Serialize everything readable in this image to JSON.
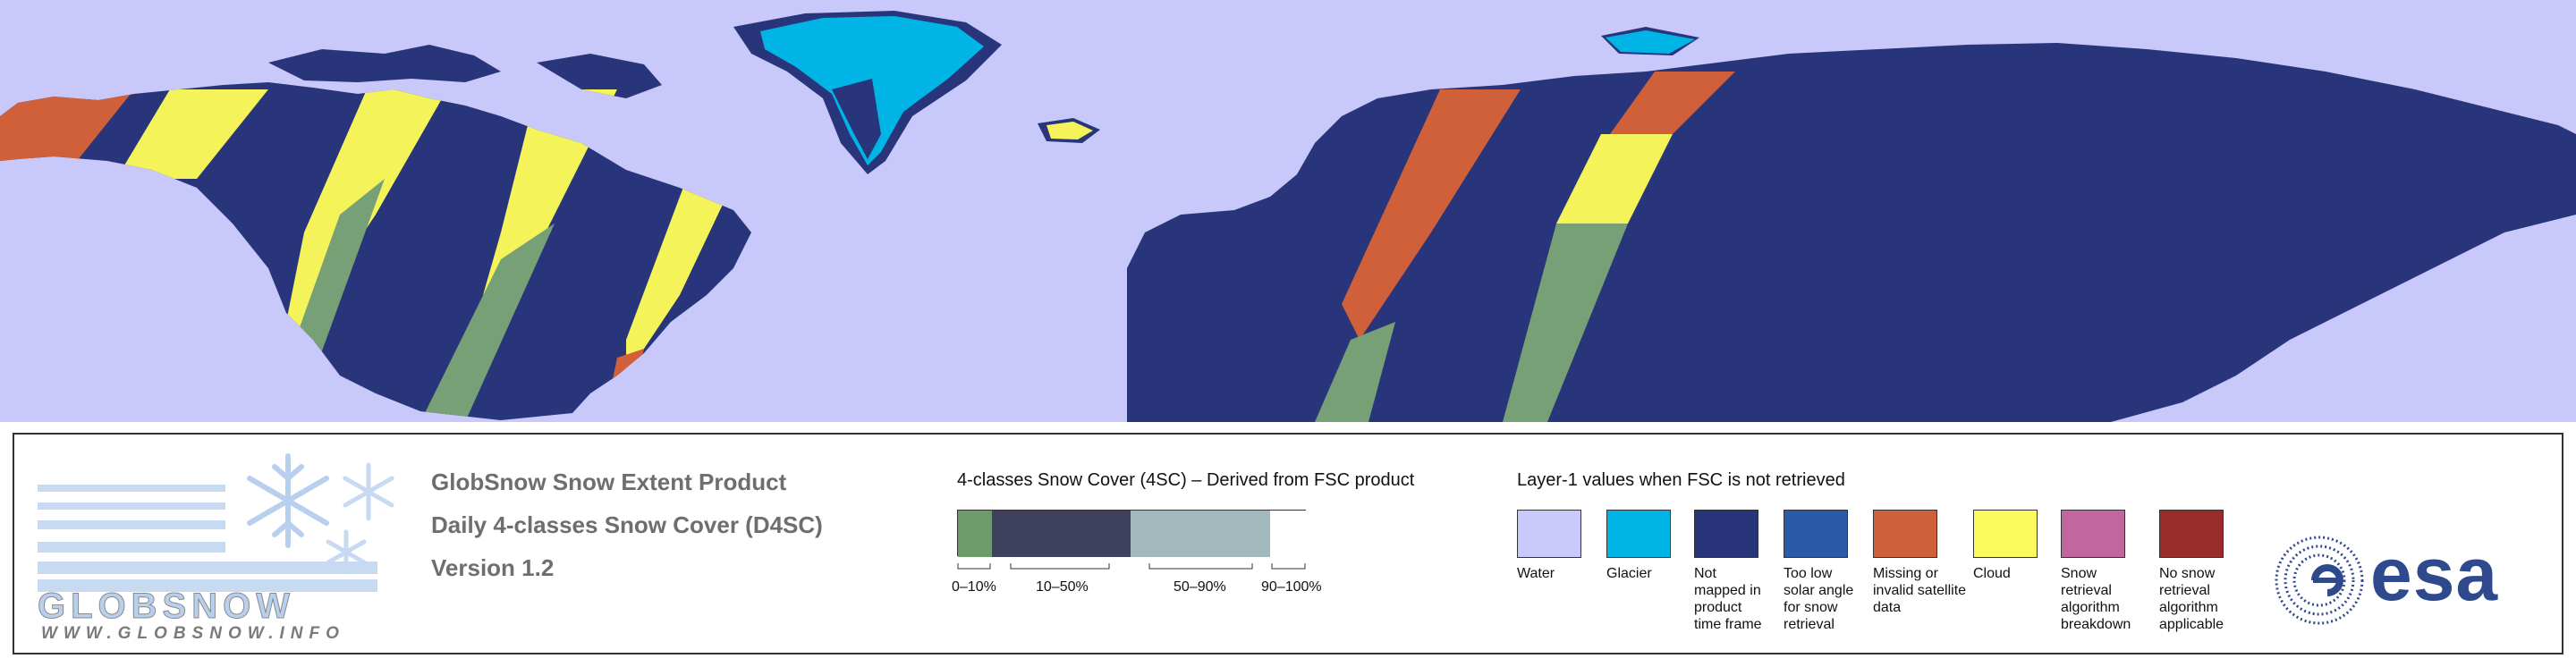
{
  "map": {
    "colors": {
      "ocean": "#c8c8fa",
      "land_snowfree": "#29357a",
      "glacier": "#00b4e6",
      "missing": "#d0603a",
      "cloud": "#f4f45a",
      "snow_low": "#78a076"
    }
  },
  "logo": {
    "wordmark": "GLOBSNOW",
    "url": "WWW.GLOBSNOW.INFO"
  },
  "product": {
    "line1": "GlobSnow Snow Extent Product",
    "line2": "Daily 4-classes Snow Cover (D4SC)",
    "line3": "Version 1.2"
  },
  "snow_cover_legend": {
    "title": "4-classes Snow Cover (4SC) – Derived from FSC product",
    "classes": [
      {
        "range": "0–10%",
        "color": "#6e9a6c"
      },
      {
        "range": "10–50%",
        "color": "#3f405e"
      },
      {
        "range": "50–90%",
        "color": "#a1b9bd"
      },
      {
        "range": "90–100%",
        "color": "#ffffff"
      }
    ]
  },
  "layer1_legend": {
    "title": "Layer-1 values when FSC is not retrieved",
    "items": [
      {
        "label": "Water",
        "color": "#c8c8fa"
      },
      {
        "label": "Glacier",
        "color": "#00b4e6"
      },
      {
        "label": "Not mapped in product time frame",
        "color": "#29357a"
      },
      {
        "label": "Too low solar angle for snow retrieval",
        "color": "#2b5aa8"
      },
      {
        "label": "Missing or invalid satellite data",
        "color": "#d0603a"
      },
      {
        "label": "Cloud",
        "color": "#fbfb5f"
      },
      {
        "label": "Snow retrieval algorithm breakdown",
        "color": "#c266a0"
      },
      {
        "label": "No snow retrieval algorithm applicable",
        "color": "#9a2c2c"
      }
    ]
  },
  "esa_logo": {
    "text": "esa",
    "color": "#2e4a8c"
  }
}
